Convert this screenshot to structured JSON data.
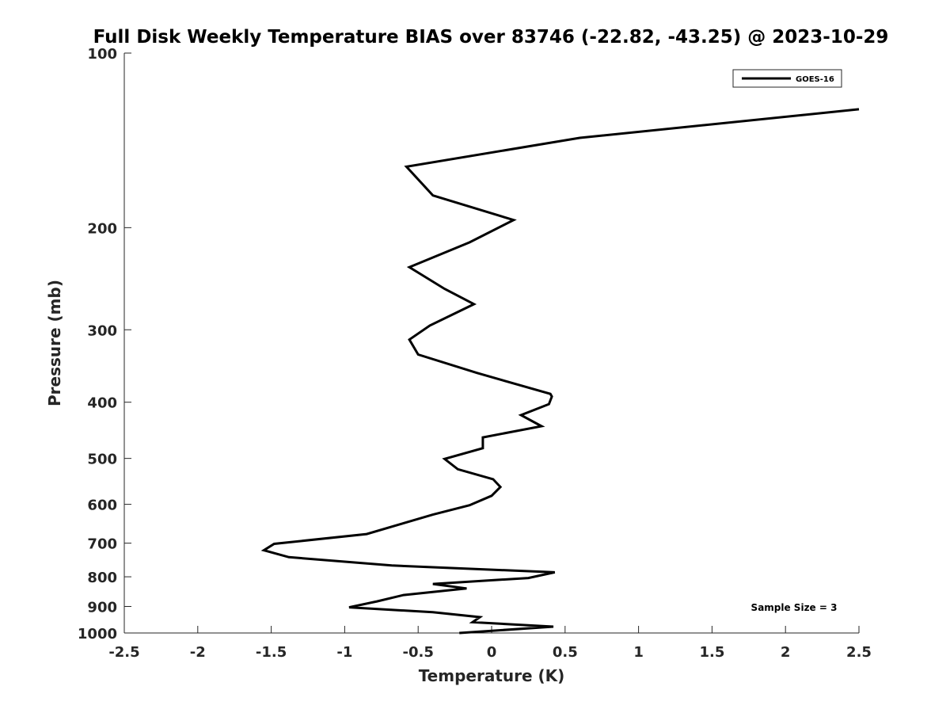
{
  "chart_data": {
    "type": "line",
    "title": "Full Disk Weekly Temperature BIAS over 83746 (-22.82, -43.25) @ 2023-10-29",
    "xlabel": "Temperature (K)",
    "ylabel": "Pressure (mb)",
    "xlim": [
      -2.5,
      2.5
    ],
    "ylim": [
      100,
      1000
    ],
    "y_scale": "log",
    "y_reversed": true,
    "x_ticks": [
      -2.5,
      -2,
      -1.5,
      -1,
      -0.5,
      0,
      0.5,
      1,
      1.5,
      2,
      2.5
    ],
    "x_tick_labels": [
      "-2.5",
      "-2",
      "-1.5",
      "-1",
      "-0.5",
      "0",
      "0.5",
      "1",
      "1.5",
      "2",
      "2.5"
    ],
    "y_ticks": [
      100,
      200,
      300,
      400,
      500,
      600,
      700,
      800,
      900,
      1000
    ],
    "y_tick_labels": [
      "100",
      "200",
      "300",
      "400",
      "500",
      "600",
      "700",
      "800",
      "900",
      "1000"
    ],
    "grid": false,
    "legend_position": "top-right",
    "annotation": "Sample Size = 3",
    "series": [
      {
        "name": "GOES-16",
        "color": "#000000",
        "points": [
          [
            2.5,
            125
          ],
          [
            0.6,
            140
          ],
          [
            -0.58,
            157
          ],
          [
            -0.4,
            176
          ],
          [
            0.15,
            194
          ],
          [
            -0.15,
            212
          ],
          [
            -0.56,
            234
          ],
          [
            -0.32,
            255
          ],
          [
            -0.12,
            271
          ],
          [
            -0.42,
            295
          ],
          [
            -0.56,
            312
          ],
          [
            -0.5,
            331
          ],
          [
            -0.1,
            356
          ],
          [
            0.4,
            387
          ],
          [
            0.41,
            391
          ],
          [
            0.39,
            403
          ],
          [
            0.2,
            421
          ],
          [
            0.34,
            440
          ],
          [
            -0.06,
            460
          ],
          [
            -0.06,
            480
          ],
          [
            -0.32,
            501
          ],
          [
            -0.23,
            522
          ],
          [
            0.01,
            543
          ],
          [
            0.06,
            560
          ],
          [
            0.0,
            580
          ],
          [
            -0.15,
            602
          ],
          [
            -0.4,
            625
          ],
          [
            -0.62,
            649
          ],
          [
            -0.85,
            675
          ],
          [
            -1.48,
            702
          ],
          [
            -1.55,
            720
          ],
          [
            -1.38,
            740
          ],
          [
            -0.68,
            765
          ],
          [
            0.43,
            786
          ],
          [
            0.25,
            804
          ],
          [
            -0.4,
            823
          ],
          [
            -0.17,
            838
          ],
          [
            -0.6,
            860
          ],
          [
            -0.78,
            882
          ],
          [
            -0.97,
            903
          ],
          [
            -0.4,
            921
          ],
          [
            -0.08,
            939
          ],
          [
            -0.13,
            958
          ],
          [
            0.42,
            975
          ],
          [
            -0.22,
            1000
          ]
        ]
      }
    ]
  }
}
